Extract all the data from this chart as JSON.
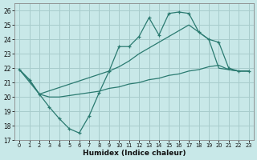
{
  "xlabel": "Humidex (Indice chaleur)",
  "background_color": "#c8e8e8",
  "grid_color": "#a8cccc",
  "line_color": "#2a7a70",
  "xlim": [
    -0.5,
    23.5
  ],
  "ylim": [
    17,
    26.5
  ],
  "yticks": [
    17,
    18,
    19,
    20,
    21,
    22,
    23,
    24,
    25,
    26
  ],
  "xticks": [
    0,
    1,
    2,
    3,
    4,
    5,
    6,
    7,
    8,
    9,
    10,
    11,
    12,
    13,
    14,
    15,
    16,
    17,
    18,
    19,
    20,
    21,
    22,
    23
  ],
  "line1_x": [
    0,
    1,
    2,
    3,
    4,
    5,
    6,
    7,
    8,
    9,
    10,
    11,
    12,
    13,
    14,
    15,
    16,
    17,
    18,
    19,
    20,
    21,
    22,
    23
  ],
  "line1_y": [
    21.9,
    21.2,
    20.2,
    19.3,
    18.5,
    17.8,
    17.5,
    18.7,
    20.3,
    21.8,
    23.5,
    23.5,
    24.2,
    25.5,
    24.3,
    25.8,
    25.9,
    25.8,
    24.5,
    24.0,
    23.8,
    22.0,
    21.8,
    21.8
  ],
  "line2_x": [
    0,
    2,
    9,
    10,
    11,
    12,
    13,
    14,
    15,
    16,
    17,
    18,
    19,
    20,
    21,
    22,
    23
  ],
  "line2_y": [
    21.9,
    20.2,
    21.8,
    22.1,
    22.5,
    23.0,
    23.4,
    23.8,
    24.2,
    24.6,
    25.0,
    24.5,
    24.0,
    22.0,
    21.9,
    21.8,
    21.8
  ],
  "line3_x": [
    0,
    1,
    2,
    3,
    4,
    5,
    6,
    7,
    8,
    9,
    10,
    11,
    12,
    13,
    14,
    15,
    16,
    17,
    18,
    19,
    20,
    21,
    22,
    23
  ],
  "line3_y": [
    21.9,
    21.2,
    20.2,
    20.0,
    20.0,
    20.1,
    20.2,
    20.3,
    20.4,
    20.6,
    20.7,
    20.9,
    21.0,
    21.2,
    21.3,
    21.5,
    21.6,
    21.8,
    21.9,
    22.1,
    22.2,
    21.9,
    21.8,
    21.8
  ]
}
